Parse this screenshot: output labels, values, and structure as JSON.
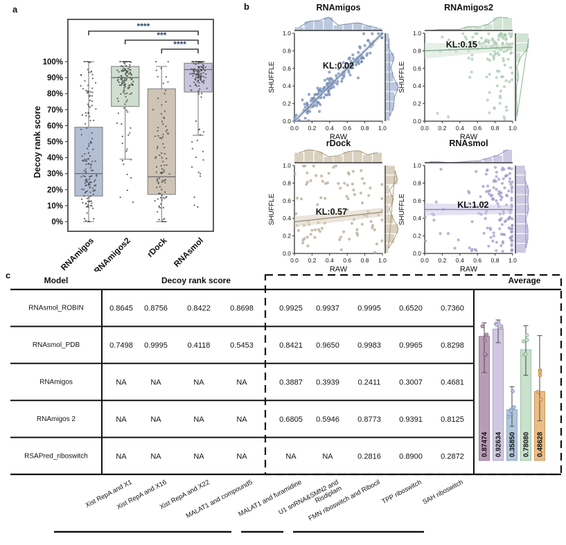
{
  "figure": {
    "panel_labels": {
      "a": "a",
      "b": "b",
      "c": "c"
    }
  },
  "chart_data": [
    {
      "id": "decoy-rank-boxplot",
      "type": "box",
      "ylabel": "Decoy rank score",
      "ylim": [
        0,
        100
      ],
      "ytick_labels": [
        "0%",
        "10%",
        "20%",
        "30%",
        "40%",
        "50%",
        "60%",
        "70%",
        "80%",
        "90%",
        "100%"
      ],
      "grid": false,
      "categories": [
        "RNAmigos",
        "RNAmigos2",
        "rDock",
        "RNAsmol"
      ],
      "boxes": [
        {
          "name": "RNAmigos",
          "color": "#aebcd3",
          "lo": 0,
          "q1": 16,
          "median": 30,
          "q3": 59,
          "hi": 100,
          "n": 150,
          "mix": [
            [
              0.78,
              32,
              18
            ],
            [
              0.22,
              85,
              9
            ]
          ]
        },
        {
          "name": "RNAmigos2",
          "color": "#ccdccc",
          "lo": 39,
          "q1": 72,
          "median": 90,
          "q3": 97,
          "hi": 100,
          "n": 120,
          "mix": [
            [
              0.75,
              90,
              7
            ],
            [
              0.25,
              45,
              25
            ]
          ]
        },
        {
          "name": "rDock",
          "color": "#cbc1b2",
          "lo": 0,
          "q1": 17,
          "median": 28,
          "q3": 83,
          "hi": 97,
          "n": 95,
          "mix": [
            [
              0.6,
              25,
              16
            ],
            [
              0.4,
              70,
              18
            ]
          ]
        },
        {
          "name": "RNAsmol",
          "color": "#c6c2dd",
          "lo": 54,
          "q1": 81,
          "median": 95,
          "q3": 99,
          "hi": 100,
          "n": 130,
          "mix": [
            [
              0.82,
              93,
              6
            ],
            [
              0.18,
              40,
              22
            ]
          ]
        }
      ],
      "significance": [
        {
          "from": 0,
          "to": 3,
          "label": "****"
        },
        {
          "from": 1,
          "to": 3,
          "label": "***"
        },
        {
          "from": 2,
          "to": 3,
          "label": "****"
        }
      ],
      "star_color": "#2f4570",
      "point_color": "#4f4f4f"
    },
    {
      "id": "shuffle-vs-raw-jointplots",
      "type": "scatter",
      "xlabel": "RAW",
      "ylabel": "SHUFFLE",
      "xlim": [
        0,
        1
      ],
      "ylim": [
        0,
        1
      ],
      "tick_labels": [
        "0.0",
        "0.2",
        "0.4",
        "0.6",
        "0.8",
        "1.0"
      ],
      "legend_position": "none",
      "subplots": [
        {
          "title": "RNAmigos",
          "kl": "KL:0.02",
          "dot": "#7389b3",
          "fill": "#bcc8dd",
          "line": "#68809f",
          "n": 170,
          "pattern": "diagonal",
          "trend": [
            0,
            0.0,
            1,
            1.0
          ],
          "band": [
            0.03,
            0.03
          ],
          "kl_at": [
            0.5,
            0.6
          ]
        },
        {
          "title": "RNAmigos2",
          "kl": "KL:0.15",
          "dot": "#a8c9af",
          "fill": "#d2e4d4",
          "line": "#7fa98b",
          "n": 130,
          "pattern": "tophigh",
          "trend": [
            0,
            0.8,
            1,
            0.84
          ],
          "band": [
            0.09,
            0.03
          ],
          "kl_at": [
            0.42,
            0.84
          ]
        },
        {
          "title": "rDock",
          "kl": "KL:0.57",
          "dot": "#b7a893",
          "fill": "#d9d0c0",
          "line": "#a08f73",
          "n": 88,
          "pattern": "scatter",
          "trend": [
            0,
            0.36,
            1,
            0.47
          ],
          "band": [
            0.06,
            0.05
          ],
          "kl_at": [
            0.42,
            0.44
          ]
        },
        {
          "title": "RNAsmol",
          "kl": "KL:1.02",
          "dot": "#a09ac9",
          "fill": "#cdc9e3",
          "line": "#8b84bb",
          "n": 150,
          "pattern": "rightband",
          "trend": [
            0,
            0.5,
            1,
            0.5
          ],
          "band": [
            0.07,
            0.05
          ],
          "kl_at": [
            0.55,
            0.52
          ]
        }
      ]
    },
    {
      "id": "decoy-rank-table",
      "type": "table",
      "headers": {
        "model": "Model",
        "score": "Decoy rank score",
        "average": "Average"
      },
      "column_labels": [
        "Xist RepA and X1",
        "Xist RepA and X16",
        "Xist RepA and X22",
        "MALAT1 and compound5",
        "MALAT1 and furamidine",
        "U1 snRNA&SMN2 and\nRisdiplam",
        "FMN riboswitch and Ribocil",
        "TPP riboswitch",
        "SAH riboswitch"
      ],
      "rows": [
        {
          "model": "RNAsmol_ROBIN",
          "values": [
            "0.8645",
            "0.8756",
            "0.8422",
            "0.8698",
            "0.9925",
            "0.9937",
            "0.9995",
            "0.6520",
            "0.7360"
          ]
        },
        {
          "model": "RNAsmol_PDB",
          "values": [
            "0.7498",
            "0.9995",
            "0.4118",
            "0.5453",
            "0.8421",
            "0.9650",
            "0.9983",
            "0.9965",
            "0.8298"
          ]
        },
        {
          "model": "RNAmigos",
          "values": [
            "NA",
            "NA",
            "NA",
            "NA",
            "0.3887",
            "0.3939",
            "0.2411",
            "0.3007",
            "0.4681"
          ]
        },
        {
          "model": "RNAmigos 2",
          "values": [
            "NA",
            "NA",
            "NA",
            "NA",
            "0.6805",
            "0.5946",
            "0.8773",
            "0.9391",
            "0.8125"
          ]
        },
        {
          "model": "RSAPred_riboswitch",
          "values": [
            "NA",
            "NA",
            "NA",
            "NA",
            "NA",
            "NA",
            "0.2816",
            "0.8900",
            "0.2872"
          ]
        }
      ]
    },
    {
      "id": "average-bars",
      "type": "bar",
      "title": "Average",
      "ylim": [
        0,
        1
      ],
      "categories": [
        "RNAsmol_ROBIN",
        "RNAsmol_PDB",
        "RNAmigos",
        "RNAmigos 2",
        "RSAPred_riboswitch"
      ],
      "values": [
        0.87474,
        0.92634,
        0.3585,
        0.7808,
        0.48628
      ],
      "bar_labels": [
        "0.87474",
        "0.92634",
        "0.35850",
        "0.78080",
        "0.48628"
      ],
      "errors": [
        [
          0.62,
          0.97
        ],
        [
          0.83,
          0.99
        ],
        [
          0.24,
          0.52
        ],
        [
          0.6,
          0.95
        ],
        [
          0.28,
          0.88
        ]
      ],
      "colors": [
        "#b596b3",
        "#cdc5e2",
        "#adc3da",
        "#c6dfca",
        "#eab97e"
      ],
      "edge_colors": [
        "#8a6a88",
        "#9c93c0",
        "#7f9cbd",
        "#92b89a",
        "#c08a45"
      ]
    }
  ]
}
